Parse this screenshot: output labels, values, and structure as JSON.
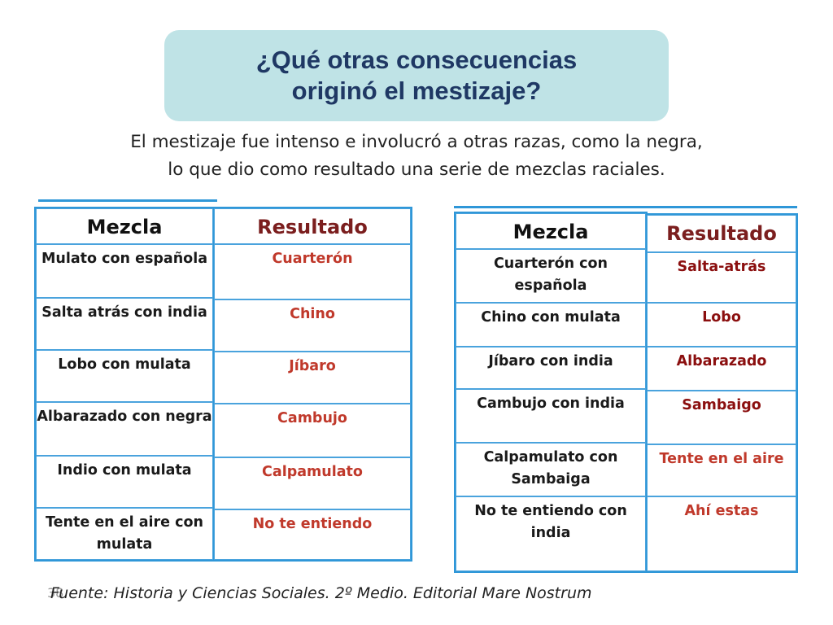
{
  "title": "¿Qué otras consecuencias\noriginó el mestizaje?",
  "intro": "El mestizaje fue intenso e involucró a otras razas, como la negra,\nlo que dio como resultado una serie de mezclas raciales.",
  "left_table": {
    "header_mix": "Mezcla",
    "header_result": "Resultado",
    "rows": [
      {
        "mix": "Mulato con española",
        "result": "Cuarterón"
      },
      {
        "mix": "Salta atrás con india",
        "result": "Chino"
      },
      {
        "mix": "Lobo con mulata",
        "result": "Jíbaro"
      },
      {
        "mix": "Albarazado con negra",
        "result": "Cambujo"
      },
      {
        "mix": "Indio con mulata",
        "result": "Calpamulato"
      },
      {
        "mix": "Tente en el aire con mulata",
        "result": "No te entiendo"
      }
    ]
  },
  "right_table": {
    "header_mix": "Mezcla",
    "header_result": "Resultado",
    "rows": [
      {
        "mix": "Cuarterón con española",
        "result": "Salta-atrás"
      },
      {
        "mix": "Chino con mulata",
        "result": "Lobo"
      },
      {
        "mix": "Jíbaro con india",
        "result": "Albarazado"
      },
      {
        "mix": "Cambujo con india",
        "result": "Sambaigo"
      },
      {
        "mix": "Calpamulato con Sambaiga",
        "result": "Tente en el aire"
      },
      {
        "mix": "No te entiendo con india",
        "result": "Ahí estas"
      }
    ]
  },
  "footer": "Fuente: Historia y Ciencias Sociales. 2º Medio. Editorial Mare Nostrum",
  "slide_number": "38",
  "colors": {
    "title_bg": "#bfe3e6",
    "title_text": "#1f3864",
    "table_border": "#2f97d8",
    "result_text": "#c0392b",
    "result_header": "#7b1e1e"
  }
}
